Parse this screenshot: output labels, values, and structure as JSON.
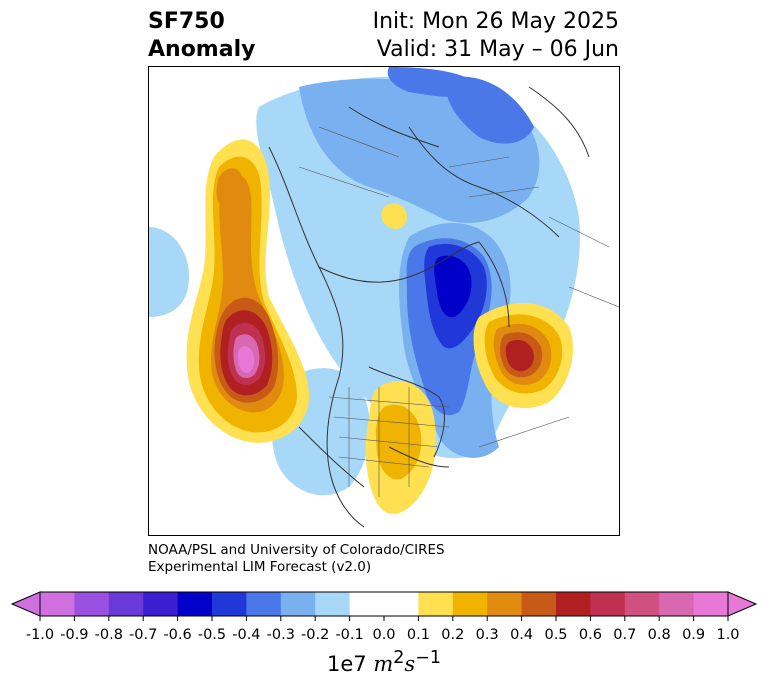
{
  "header": {
    "variable": "SF750",
    "subtitle": "Anomaly",
    "init": "Init: Mon 26 May 2025",
    "valid": "Valid: 31 May – 06 Jun"
  },
  "credit": {
    "line1": "NOAA/PSL and University of Colorado/CIRES",
    "line2": "Experimental LIM Forecast (v2.0)"
  },
  "colorbar": {
    "multiplier": "1e7",
    "unit_base": "m",
    "unit_exp1": "2",
    "unit_mid": "s",
    "unit_exp2": "−1",
    "ticks": [
      "-1.0",
      "-0.9",
      "-0.8",
      "-0.7",
      "-0.6",
      "-0.5",
      "-0.4",
      "-0.3",
      "-0.2",
      "-0.1",
      "0.0",
      "0.1",
      "0.2",
      "0.3",
      "0.4",
      "0.5",
      "0.6",
      "0.7",
      "0.8",
      "0.9",
      "1.0"
    ],
    "colors": [
      "#d070e0",
      "#9a50e0",
      "#6a3ad8",
      "#3a1ed0",
      "#0000c8",
      "#2038d8",
      "#4a78e8",
      "#78b0f0",
      "#a8d8f8",
      "#ffffff",
      "#ffffff",
      "#ffe050",
      "#f0b400",
      "#e08a10",
      "#c85a18",
      "#b02020",
      "#c03050",
      "#d05080",
      "#d868b0",
      "#e878d8"
    ]
  },
  "map_features": {
    "projection": "north polar stereographic",
    "anomalies": [
      {
        "name": "north-pacific-positive",
        "sign": "positive",
        "peak": 0.9
      },
      {
        "name": "kara-sea-negative",
        "sign": "negative",
        "peak": -0.6
      },
      {
        "name": "east-europe-positive",
        "sign": "positive",
        "peak": 0.6
      },
      {
        "name": "north-america-positive",
        "sign": "positive",
        "peak": 0.2
      },
      {
        "name": "arctic-negative",
        "sign": "negative",
        "peak": -0.4
      }
    ]
  }
}
